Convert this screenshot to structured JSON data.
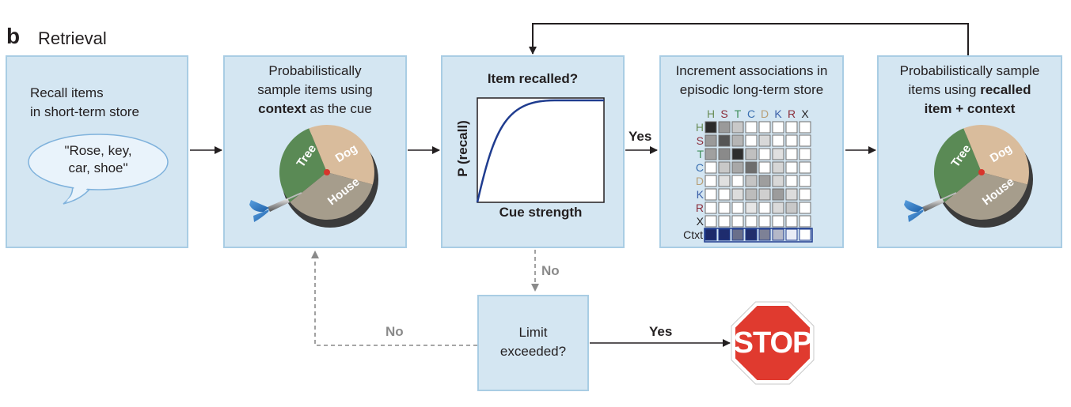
{
  "header": {
    "panel_letter": "b",
    "title": "Retrieval"
  },
  "boxes": {
    "recall": {
      "line1": "Recall items",
      "line2": "in short-term store"
    },
    "speech": {
      "line1": "\"Rose, key,",
      "line2": "car, shoe\""
    },
    "sample_context": {
      "line1": "Probabilistically",
      "line2": "sample items using",
      "line3_bold": "context",
      "line3_rest": " as the cue"
    },
    "item_recalled": {
      "title": "Item recalled?",
      "ylabel": "P (recall)",
      "xlabel": "Cue strength"
    },
    "increment": {
      "line1": "Increment associations in",
      "line2": "episodic long-term store"
    },
    "sample_recalled": {
      "line1": "Probabilistically sample",
      "line2_pre": "items using ",
      "line2_bold": "recalled",
      "line3_bold": "item + context"
    },
    "limit": {
      "line1": "Limit",
      "line2": "exceeded?"
    }
  },
  "dartboard": {
    "tree": "Tree",
    "dog": "Dog",
    "house": "House"
  },
  "matrix": {
    "col_labels": [
      "H",
      "S",
      "T",
      "C",
      "D",
      "K",
      "R",
      "X"
    ],
    "row_labels": [
      "H",
      "S",
      "T",
      "C",
      "D",
      "K",
      "R",
      "X",
      "Ctxt"
    ],
    "label_colors": [
      "#6b8e5a",
      "#8b2d3a",
      "#3f8f5a",
      "#3a6fb0",
      "#b8a078",
      "#3a5fa8",
      "#8b2d3a",
      "#231f20"
    ],
    "ctxt_color": "#231f20"
  },
  "flow_labels": {
    "yes_recalled": "Yes",
    "no_recalled": "No",
    "no_limit": "No",
    "yes_limit": "Yes"
  },
  "stop_sign": {
    "text": "STOP"
  },
  "colors": {
    "box_fill": "#d4e6f2",
    "box_border": "#a9cde4",
    "curve": "#1f3c8f",
    "stop_red": "#e03a2f",
    "dashed_gray": "#8a8a8a"
  }
}
